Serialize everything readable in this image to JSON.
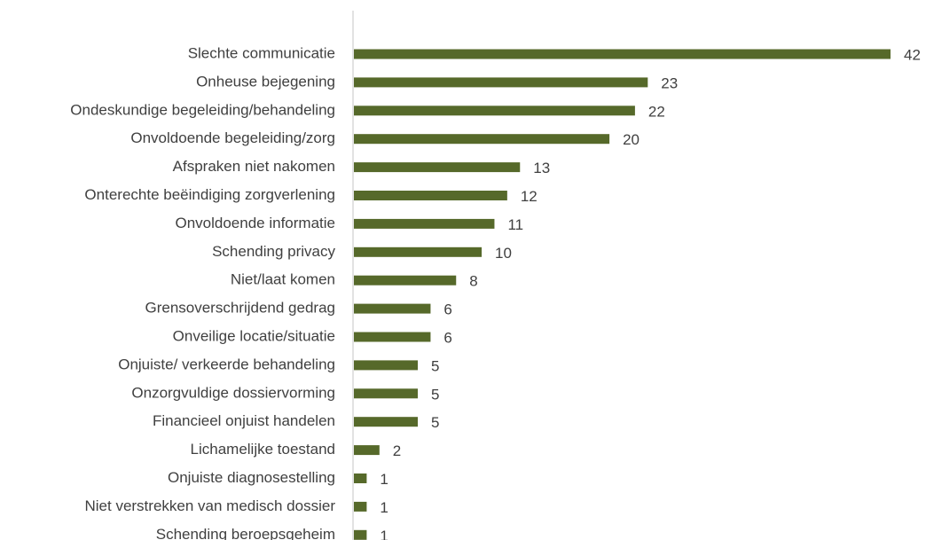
{
  "chart_data": {
    "type": "bar",
    "orientation": "horizontal",
    "categories": [
      "Slechte communicatie",
      "Onheuse bejegening",
      "Ondeskundige begeleiding/behandeling",
      "Onvoldoende begeleiding/zorg",
      "Afspraken niet nakomen",
      "Onterechte beëindiging zorgverlening",
      "Onvoldoende informatie",
      "Schending privacy",
      "Niet/laat komen",
      "Grensoverschrijdend gedrag",
      "Onveilige locatie/situatie",
      "Onjuiste/ verkeerde behandeling",
      "Onzorgvuldige dossiervorming",
      "Financieel onjuist handelen",
      "Lichamelijke toestand",
      "Onjuiste diagnosestelling",
      "Niet verstrekken van medisch dossier",
      "Schending beroepsgeheim"
    ],
    "values": [
      42,
      23,
      22,
      20,
      13,
      12,
      11,
      10,
      8,
      6,
      6,
      5,
      5,
      5,
      2,
      1,
      1,
      1
    ],
    "title": "",
    "xlabel": "",
    "ylabel": "",
    "xlim": [
      0,
      42
    ],
    "grid": false,
    "legend": "none",
    "data_labels": true,
    "bar_color": "#56692a",
    "axis_color": "#d9d9d9",
    "text_color": "#404040"
  }
}
